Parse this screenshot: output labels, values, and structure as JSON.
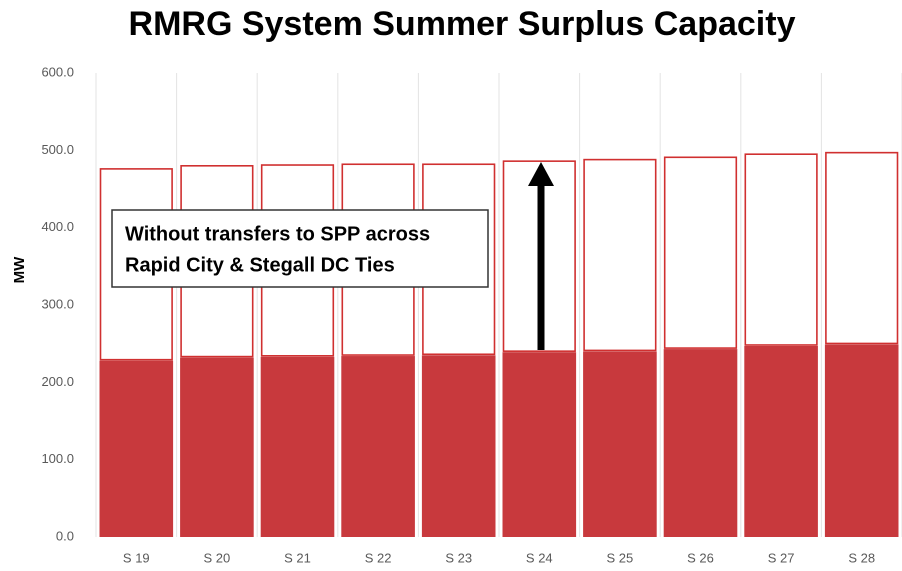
{
  "chart_data": {
    "type": "stacked_bar",
    "title": "RMRG System Summer Surplus Capacity",
    "y_label": "MW",
    "annotation": [
      "Without transfers to SPP across",
      "Rapid City & Stegall DC Ties"
    ],
    "categories": [
      "S 19",
      "S 20",
      "S 21",
      "S 22",
      "S 23",
      "S 24",
      "S 25",
      "S 26",
      "S 27",
      "S 28"
    ],
    "series": [
      {
        "color": "#c8393d",
        "style": "filled",
        "values": [
          228,
          232,
          233,
          234,
          235,
          239,
          240,
          243,
          247,
          249
        ]
      },
      {
        "color": "#d03030",
        "style": "outline",
        "values": [
          248,
          248,
          248,
          248,
          247,
          247,
          248,
          248,
          248,
          248
        ]
      }
    ],
    "ylim": [
      0,
      600
    ],
    "yticks": [
      {
        "value": 0,
        "label": "0.0"
      },
      {
        "value": 100,
        "label": "100.0"
      },
      {
        "value": 200,
        "label": "200.0"
      },
      {
        "value": 300,
        "label": "300.0"
      },
      {
        "value": 400,
        "label": "400.0"
      },
      {
        "value": 500,
        "label": "500.0"
      },
      {
        "value": 600,
        "label": "600.0"
      }
    ],
    "grid": false
  }
}
